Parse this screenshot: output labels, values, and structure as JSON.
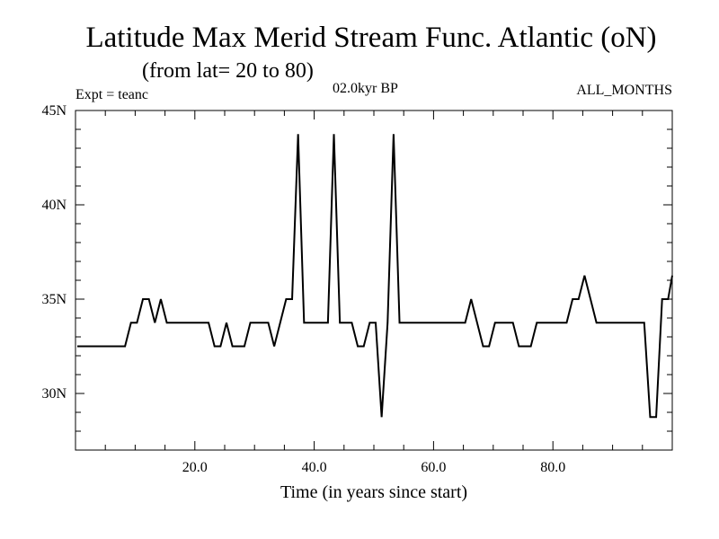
{
  "chart_data": {
    "type": "line",
    "title": "Latitude Max Merid Stream Func. Atlantic (oN)",
    "subtitle": "(from lat= 20 to 80)",
    "annotation_left": "Expt = teanc",
    "annotation_center": "02.0kyr BP",
    "annotation_right": "ALL_MONTHS",
    "xlabel": "Time (in years since start)",
    "ylabel": "",
    "xlim": [
      0,
      100
    ],
    "ylim": [
      27,
      45
    ],
    "x_ticks": [
      {
        "value": 20,
        "label": "20.0"
      },
      {
        "value": 40,
        "label": "40.0"
      },
      {
        "value": 60,
        "label": "60.0"
      },
      {
        "value": 80,
        "label": "80.0"
      }
    ],
    "y_ticks": [
      {
        "value": 30,
        "label": "30N"
      },
      {
        "value": 35,
        "label": "35N"
      },
      {
        "value": 40,
        "label": "40N"
      },
      {
        "value": 45,
        "label": "45N"
      }
    ],
    "grid": false,
    "line_color": "#000000",
    "series": [
      {
        "x": [
          0.3,
          8.3,
          9.3,
          10.3,
          11.3,
          12.3,
          13.3,
          14.3,
          15.3,
          22.3,
          23.3,
          24.3,
          25.3,
          26.3,
          27.3,
          28.3,
          29.3,
          30.3,
          31.3,
          32.3,
          33.3,
          34.3,
          35.3,
          36.3,
          37.3,
          38.3,
          39.3,
          40.3,
          41.3,
          42.3,
          43.3,
          44.3,
          45.3,
          46.3,
          47.3,
          48.3,
          49.3,
          50.3,
          51.3,
          52.3,
          53.3,
          54.3,
          55.3,
          56.3,
          65.3,
          66.3,
          67.3,
          68.3,
          69.3,
          70.3,
          73.3,
          74.3,
          75.3,
          76.3,
          77.3,
          78.3,
          82.3,
          83.3,
          84.3,
          85.3,
          86.3,
          87.3,
          95.3,
          96.3,
          97.3,
          98.3,
          99.3,
          100.3
        ],
        "y": [
          32.5,
          32.5,
          33.75,
          33.75,
          35,
          35,
          33.75,
          35,
          33.75,
          33.75,
          32.5,
          32.5,
          33.75,
          32.5,
          32.5,
          32.5,
          33.75,
          33.75,
          33.75,
          33.75,
          32.5,
          33.75,
          35,
          35,
          43.75,
          33.75,
          33.75,
          33.75,
          33.75,
          33.75,
          43.75,
          33.75,
          33.75,
          33.75,
          32.5,
          32.5,
          33.75,
          33.75,
          28.75,
          33.75,
          43.75,
          33.75,
          33.75,
          33.75,
          33.75,
          35,
          33.75,
          32.5,
          32.5,
          33.75,
          33.75,
          32.5,
          32.5,
          32.5,
          33.75,
          33.75,
          33.75,
          35,
          35,
          36.25,
          35,
          33.75,
          33.75,
          28.75,
          28.75,
          35,
          35,
          36.25
        ]
      }
    ]
  }
}
